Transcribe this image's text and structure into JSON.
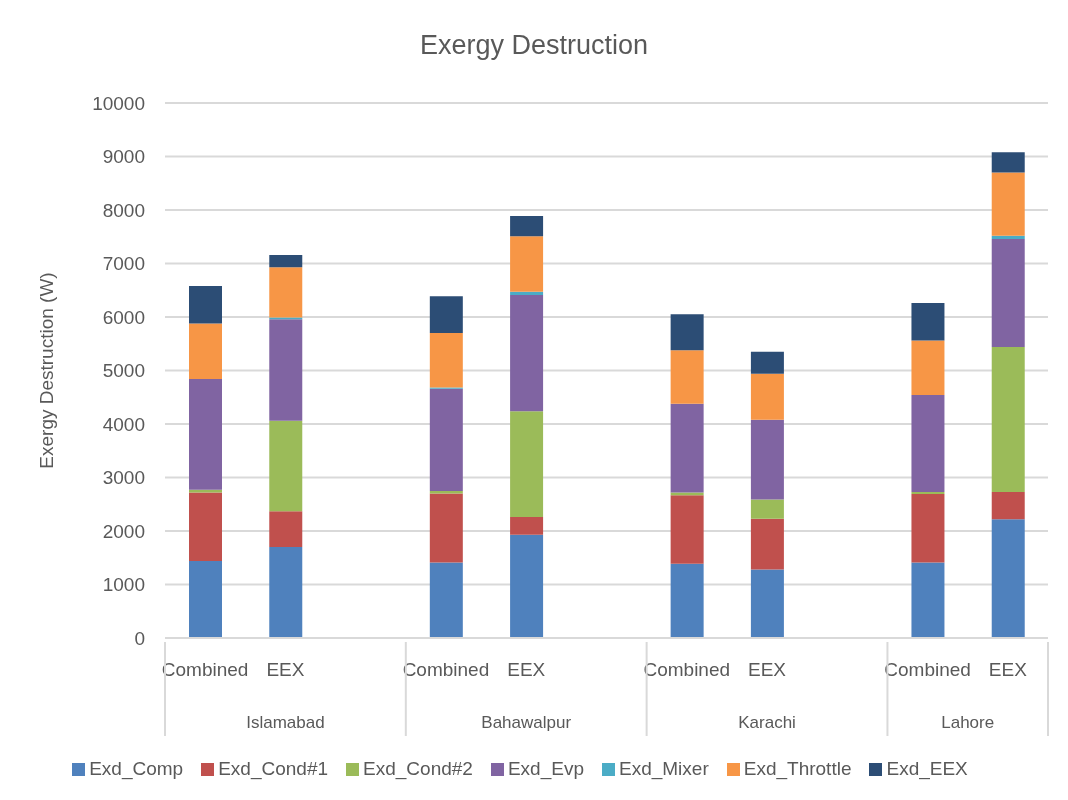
{
  "chart_data": {
    "type": "bar",
    "stacked": true,
    "title": "Exergy Destruction",
    "ylabel": "Exergy Destruction (W)",
    "categories": [
      "Combined",
      "EEX",
      null,
      "Combined",
      "EEX",
      null,
      "Combined",
      "EEX",
      null,
      "Combined",
      "EEX"
    ],
    "annotations": [
      "Islamabad",
      "Bahawalpur",
      "Karachi",
      "Lahore"
    ],
    "series": [
      {
        "name": "Exd_Comp",
        "color": "#4f81bd",
        "values": [
          1440,
          1700,
          null,
          1410,
          1930,
          null,
          1390,
          1280,
          null,
          1410,
          2220
        ]
      },
      {
        "name": "Exd_Cond#1",
        "color": "#c0504d",
        "values": [
          1280,
          670,
          null,
          1290,
          330,
          null,
          1280,
          950,
          null,
          1280,
          510
        ]
      },
      {
        "name": "Exd_Cond#2",
        "color": "#9bbb59",
        "values": [
          50,
          1690,
          null,
          50,
          1980,
          null,
          50,
          360,
          null,
          40,
          2710
        ]
      },
      {
        "name": "Exd_Evp",
        "color": "#8064a2",
        "values": [
          2070,
          1900,
          null,
          1910,
          2170,
          null,
          1660,
          1490,
          null,
          1810,
          2020
        ]
      },
      {
        "name": "Exd_Mixer",
        "color": "#4bacc6",
        "values": [
          null,
          30,
          null,
          20,
          60,
          null,
          null,
          null,
          null,
          null,
          60
        ]
      },
      {
        "name": "Exd_Throttle",
        "color": "#f79646",
        "values": [
          1040,
          940,
          null,
          1020,
          1040,
          null,
          1000,
          860,
          null,
          1020,
          1180
        ]
      },
      {
        "name": "Exd_EEX",
        "color": "#2c4d75",
        "values": [
          700,
          230,
          null,
          690,
          380,
          null,
          670,
          410,
          null,
          700,
          380
        ]
      }
    ],
    "ylim": [
      0,
      10000
    ],
    "yticks": [
      0,
      1000,
      2000,
      3000,
      4000,
      5000,
      6000,
      7000,
      8000,
      9000,
      10000
    ],
    "grid": "y",
    "legend": "bottom"
  }
}
